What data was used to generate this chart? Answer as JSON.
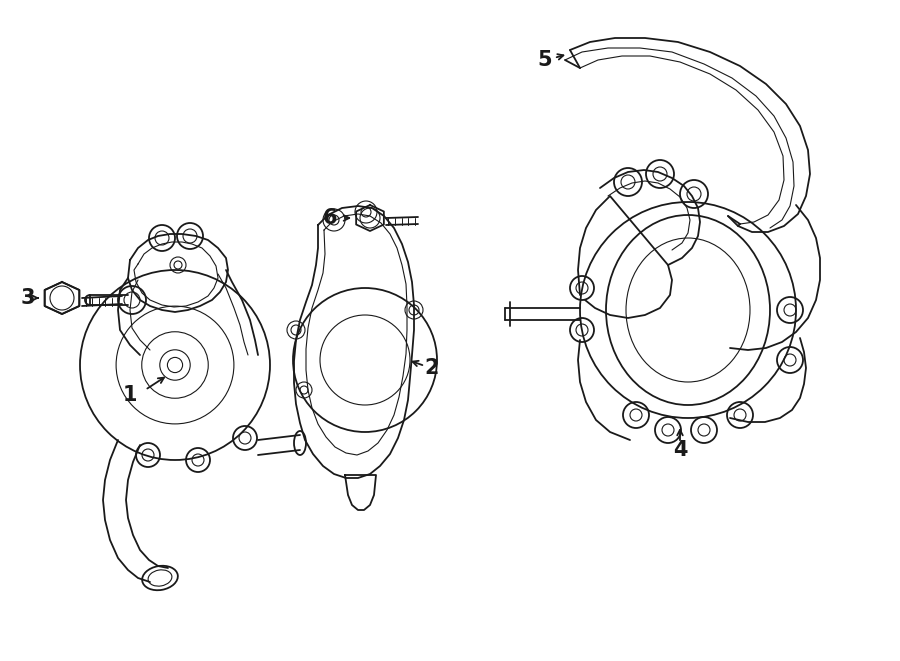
{
  "bg_color": "#ffffff",
  "line_color": "#1a1a1a",
  "lw": 1.3,
  "tlw": 0.8,
  "fig_w": 9.0,
  "fig_h": 6.61,
  "dpi": 100,
  "xlim": [
    0,
    900
  ],
  "ylim": [
    0,
    661
  ]
}
